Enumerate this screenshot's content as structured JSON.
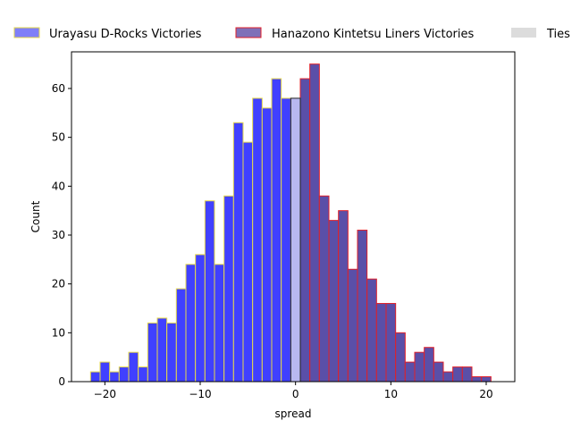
{
  "chart_data": {
    "type": "bar",
    "xlabel": "spread",
    "ylabel": "Count",
    "xlim": [
      -23.5,
      23
    ],
    "ylim": [
      0,
      67.5
    ],
    "xticks": [
      -20,
      -10,
      0,
      10,
      20
    ],
    "yticks": [
      0,
      10,
      20,
      30,
      40,
      50,
      60
    ],
    "grid": false,
    "legend_placement": "top (above plot, outside)",
    "series": [
      {
        "name": "Urayasu D-Rocks Victories",
        "fill": "#4040ff",
        "edge": "#e6d84a",
        "bins": [
          {
            "x": -21,
            "count": 2
          },
          {
            "x": -20,
            "count": 4
          },
          {
            "x": -19,
            "count": 2
          },
          {
            "x": -18,
            "count": 3
          },
          {
            "x": -17,
            "count": 6
          },
          {
            "x": -16,
            "count": 3
          },
          {
            "x": -15,
            "count": 12
          },
          {
            "x": -14,
            "count": 13
          },
          {
            "x": -13,
            "count": 12
          },
          {
            "x": -12,
            "count": 19
          },
          {
            "x": -11,
            "count": 24
          },
          {
            "x": -10,
            "count": 26
          },
          {
            "x": -9,
            "count": 37
          },
          {
            "x": -8,
            "count": 24
          },
          {
            "x": -7,
            "count": 38
          },
          {
            "x": -6,
            "count": 53
          },
          {
            "x": -5,
            "count": 49
          },
          {
            "x": -4,
            "count": 58
          },
          {
            "x": -3,
            "count": 56
          },
          {
            "x": -2,
            "count": 62
          },
          {
            "x": -1,
            "count": 58
          }
        ]
      },
      {
        "name": "Hanazono Kintetsu Liners Victories",
        "fill": "#5a4fa8",
        "edge": "#e0202a",
        "bins": [
          {
            "x": 1,
            "count": 62
          },
          {
            "x": 2,
            "count": 65
          },
          {
            "x": 3,
            "count": 38
          },
          {
            "x": 4,
            "count": 33
          },
          {
            "x": 5,
            "count": 35
          },
          {
            "x": 6,
            "count": 23
          },
          {
            "x": 7,
            "count": 31
          },
          {
            "x": 8,
            "count": 21
          },
          {
            "x": 9,
            "count": 16
          },
          {
            "x": 10,
            "count": 16
          },
          {
            "x": 11,
            "count": 10
          },
          {
            "x": 12,
            "count": 4
          },
          {
            "x": 13,
            "count": 6
          },
          {
            "x": 14,
            "count": 7
          },
          {
            "x": 15,
            "count": 4
          },
          {
            "x": 16,
            "count": 2
          },
          {
            "x": 17,
            "count": 3
          },
          {
            "x": 18,
            "count": 3
          },
          {
            "x": 19,
            "count": 1
          },
          {
            "x": 20,
            "count": 1
          }
        ]
      },
      {
        "name": "Ties",
        "fill": "#b8b8f0",
        "edge": "#222222",
        "bins": [
          {
            "x": 0,
            "count": 58
          }
        ]
      }
    ],
    "legend_swatch_colors": [
      "#7f7ff8",
      "#7f70b8",
      "#dcdcdc"
    ]
  }
}
